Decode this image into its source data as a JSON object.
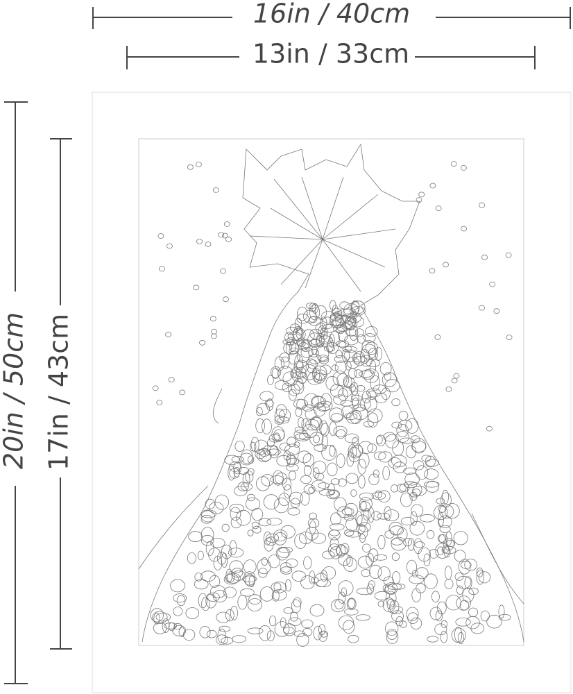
{
  "dimensions": {
    "outer_width": "16in / 40cm",
    "inner_width": "13in / 33cm",
    "outer_height": "20in / 50cm",
    "inner_height": "17in / 43cm"
  }
}
